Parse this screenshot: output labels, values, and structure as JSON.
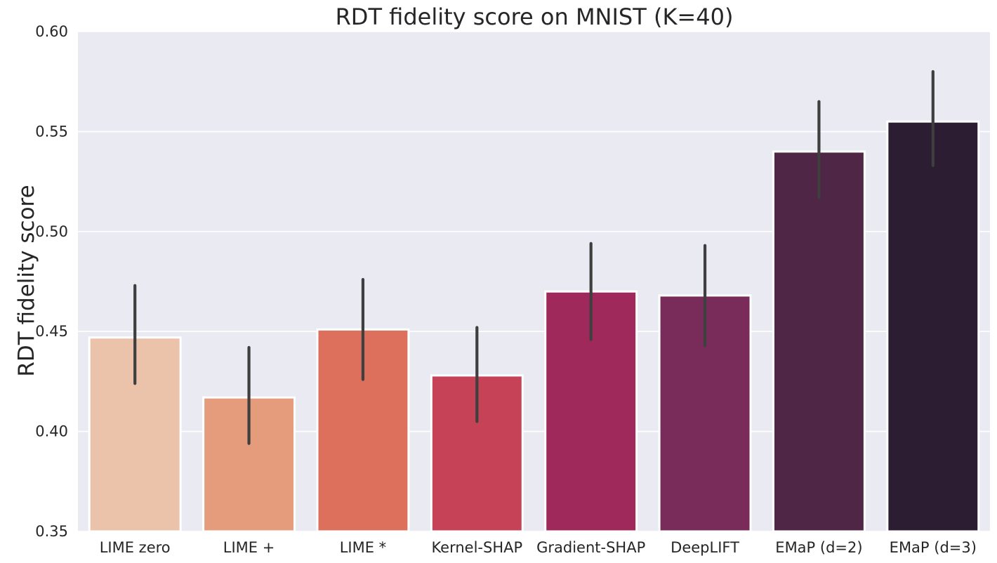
{
  "chart_data": {
    "type": "bar",
    "title": "RDT fidelity score on MNIST (K=40)",
    "xlabel": "",
    "ylabel": "RDT fidelity score",
    "ylim": [
      0.35,
      0.6
    ],
    "yticks": [
      "0.35",
      "0.40",
      "0.45",
      "0.50",
      "0.55",
      "0.60"
    ],
    "grid": true,
    "categories": [
      "LIME zero",
      "LIME +",
      "LIME *",
      "Kernel-SHAP",
      "Gradient-SHAP",
      "DeepLIFT",
      "EMaP (d=2)",
      "EMaP (d=3)"
    ],
    "values": [
      0.447,
      0.417,
      0.451,
      0.428,
      0.47,
      0.468,
      0.54,
      0.555
    ],
    "error_low": [
      0.424,
      0.394,
      0.426,
      0.405,
      0.446,
      0.443,
      0.517,
      0.533
    ],
    "error_high": [
      0.473,
      0.442,
      0.476,
      0.452,
      0.494,
      0.493,
      0.565,
      0.58
    ],
    "colors": [
      "#ebc2aa",
      "#e49c7c",
      "#dc705d",
      "#c64256",
      "#a0295b",
      "#792b5a",
      "#502646",
      "#2c1d32"
    ],
    "background_color": "#eaeaf2",
    "grid_color": "#ffffff",
    "error_color": "#3f3f3f"
  }
}
